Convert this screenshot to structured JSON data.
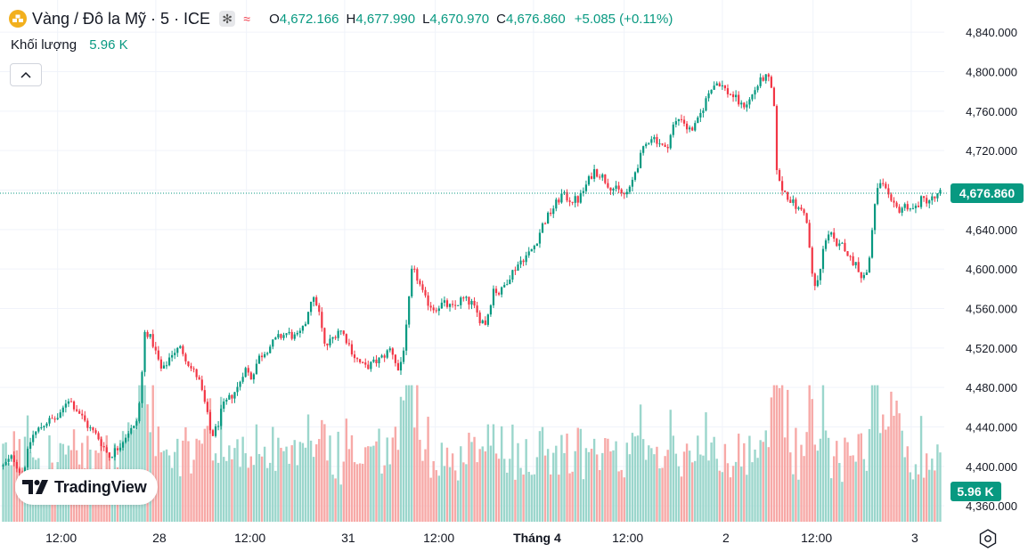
{
  "legend": {
    "symbol": "Vàng / Đô la Mỹ · 5 · ICE",
    "o_label": "O",
    "o_value": "4,672.166",
    "h_label": "H",
    "h_value": "4,677.990",
    "l_label": "L",
    "l_value": "4,670.970",
    "c_label": "C",
    "c_value": "4,676.860",
    "change": "+5.085 (+0.11%)"
  },
  "volume_legend": {
    "label": "Khối lượng",
    "value": "5.96 K"
  },
  "logo": {
    "text": "TradingView"
  },
  "colors": {
    "up": "#089981",
    "down": "#f23645",
    "up_vol": "#9bd6cc",
    "down_vol": "#f7a9a7",
    "grid": "#f0f3fa",
    "text": "#131722"
  },
  "chart_data": {
    "type": "candlestick",
    "title": "Vàng / Đô la Mỹ · 5 · ICE",
    "ylim": [
      4360,
      4860
    ],
    "y_ticks": [
      4840,
      4800,
      4760,
      4720,
      4680,
      4640,
      4600,
      4560,
      4520,
      4480,
      4440,
      4400,
      4360
    ],
    "y_tick_labels": [
      "4,840.000",
      "4,800.000",
      "4,760.000",
      "4,720.000",
      "4,680.000",
      "4,640.000",
      "4,600.000",
      "4,560.000",
      "4,520.000",
      "4,480.000",
      "4,440.000",
      "4,400.000",
      "4,360.000"
    ],
    "x_ticks": [
      {
        "label": "12:00",
        "pos": 0.061,
        "bold": false
      },
      {
        "label": "28",
        "pos": 0.165,
        "bold": false
      },
      {
        "label": "12:00",
        "pos": 0.261,
        "bold": false
      },
      {
        "label": "31",
        "pos": 0.365,
        "bold": false
      },
      {
        "label": "12:00",
        "pos": 0.461,
        "bold": false
      },
      {
        "label": "Tháng 4",
        "pos": 0.565,
        "bold": true
      },
      {
        "label": "12:00",
        "pos": 0.661,
        "bold": false
      },
      {
        "label": "2",
        "pos": 0.765,
        "bold": false
      },
      {
        "label": "12:00",
        "pos": 0.861,
        "bold": false
      },
      {
        "label": "3",
        "pos": 0.965,
        "bold": false
      }
    ],
    "close_path": [
      [
        0.0,
        4400
      ],
      [
        0.01,
        4410
      ],
      [
        0.02,
        4390
      ],
      [
        0.03,
        4430
      ],
      [
        0.045,
        4445
      ],
      [
        0.06,
        4450
      ],
      [
        0.068,
        4470
      ],
      [
        0.08,
        4455
      ],
      [
        0.09,
        4440
      ],
      [
        0.1,
        4430
      ],
      [
        0.112,
        4410
      ],
      [
        0.122,
        4420
      ],
      [
        0.132,
        4435
      ],
      [
        0.14,
        4440
      ],
      [
        0.145,
        4470
      ],
      [
        0.15,
        4540
      ],
      [
        0.158,
        4525
      ],
      [
        0.168,
        4495
      ],
      [
        0.178,
        4515
      ],
      [
        0.188,
        4520
      ],
      [
        0.198,
        4500
      ],
      [
        0.206,
        4490
      ],
      [
        0.214,
        4460
      ],
      [
        0.22,
        4430
      ],
      [
        0.226,
        4440
      ],
      [
        0.232,
        4460
      ],
      [
        0.24,
        4470
      ],
      [
        0.248,
        4480
      ],
      [
        0.255,
        4500
      ],
      [
        0.262,
        4490
      ],
      [
        0.27,
        4510
      ],
      [
        0.28,
        4520
      ],
      [
        0.29,
        4530
      ],
      [
        0.3,
        4535
      ],
      [
        0.31,
        4530
      ],
      [
        0.318,
        4540
      ],
      [
        0.325,
        4570
      ],
      [
        0.332,
        4565
      ],
      [
        0.34,
        4520
      ],
      [
        0.348,
        4530
      ],
      [
        0.355,
        4540
      ],
      [
        0.362,
        4530
      ],
      [
        0.372,
        4510
      ],
      [
        0.382,
        4500
      ],
      [
        0.392,
        4505
      ],
      [
        0.4,
        4510
      ],
      [
        0.41,
        4520
      ],
      [
        0.418,
        4495
      ],
      [
        0.425,
        4530
      ],
      [
        0.432,
        4600
      ],
      [
        0.438,
        4590
      ],
      [
        0.445,
        4570
      ],
      [
        0.455,
        4560
      ],
      [
        0.465,
        4565
      ],
      [
        0.475,
        4560
      ],
      [
        0.485,
        4570
      ],
      [
        0.495,
        4565
      ],
      [
        0.503,
        4550
      ],
      [
        0.51,
        4545
      ],
      [
        0.518,
        4580
      ],
      [
        0.525,
        4575
      ],
      [
        0.533,
        4590
      ],
      [
        0.54,
        4600
      ],
      [
        0.548,
        4610
      ],
      [
        0.555,
        4615
      ],
      [
        0.562,
        4625
      ],
      [
        0.57,
        4645
      ],
      [
        0.58,
        4660
      ],
      [
        0.59,
        4675
      ],
      [
        0.6,
        4670
      ],
      [
        0.608,
        4670
      ],
      [
        0.616,
        4685
      ],
      [
        0.624,
        4700
      ],
      [
        0.632,
        4695
      ],
      [
        0.64,
        4685
      ],
      [
        0.648,
        4680
      ],
      [
        0.656,
        4675
      ],
      [
        0.662,
        4680
      ],
      [
        0.668,
        4700
      ],
      [
        0.676,
        4720
      ],
      [
        0.684,
        4735
      ],
      [
        0.692,
        4730
      ],
      [
        0.7,
        4720
      ],
      [
        0.708,
        4745
      ],
      [
        0.716,
        4755
      ],
      [
        0.724,
        4740
      ],
      [
        0.732,
        4745
      ],
      [
        0.74,
        4765
      ],
      [
        0.748,
        4785
      ],
      [
        0.756,
        4790
      ],
      [
        0.764,
        4780
      ],
      [
        0.772,
        4775
      ],
      [
        0.78,
        4765
      ],
      [
        0.788,
        4770
      ],
      [
        0.796,
        4785
      ],
      [
        0.804,
        4795
      ],
      [
        0.81,
        4790
      ],
      [
        0.814,
        4770
      ],
      [
        0.818,
        4690
      ],
      [
        0.824,
        4680
      ],
      [
        0.832,
        4670
      ],
      [
        0.84,
        4660
      ],
      [
        0.846,
        4660
      ],
      [
        0.85,
        4640
      ],
      [
        0.856,
        4580
      ],
      [
        0.862,
        4590
      ],
      [
        0.868,
        4630
      ],
      [
        0.874,
        4640
      ],
      [
        0.88,
        4620
      ],
      [
        0.888,
        4625
      ],
      [
        0.895,
        4610
      ],
      [
        0.902,
        4605
      ],
      [
        0.908,
        4590
      ],
      [
        0.914,
        4600
      ],
      [
        0.92,
        4660
      ],
      [
        0.926,
        4690
      ],
      [
        0.932,
        4680
      ],
      [
        0.938,
        4665
      ],
      [
        0.946,
        4660
      ],
      [
        0.954,
        4665
      ],
      [
        0.962,
        4660
      ],
      [
        0.97,
        4670
      ],
      [
        0.978,
        4670
      ],
      [
        0.985,
        4672
      ],
      [
        0.99,
        4677
      ]
    ],
    "last_price": 4676.86,
    "last_price_label": "4,676.860",
    "volume_label": "5.96 K",
    "volume_ylim": [
      0,
      12
    ]
  }
}
